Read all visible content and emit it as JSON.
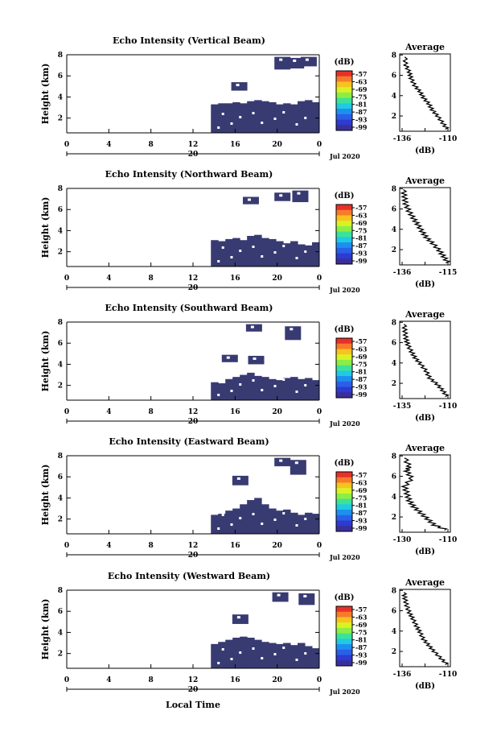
{
  "x_axis_label": "Local Time",
  "colorbar": {
    "unit": "(dB)",
    "tick_labels": [
      "-57",
      "-63",
      "-69",
      "-75",
      "-81",
      "-87",
      "-93",
      "-99"
    ],
    "colors": [
      "#e8302a",
      "#f77b2a",
      "#f8c21f",
      "#d9f225",
      "#8cee44",
      "#3ce29a",
      "#20cae2",
      "#1d8ff0",
      "#2a5fe8",
      "#2d3bd1",
      "#3a2f9a"
    ]
  },
  "palette": {
    "echo": "#383b72",
    "line": "#000000"
  },
  "chart_data": [
    {
      "type": "heatmap",
      "title": "Echo Intensity (Vertical Beam)",
      "ylabel": "Height (km)",
      "y_tick_labels": [
        "2",
        "4",
        "6",
        "8"
      ],
      "y_range": [
        0.6,
        8.0
      ],
      "x_tick_labels": [
        "0",
        "4",
        "8",
        "12",
        "16",
        "20",
        "0"
      ],
      "x_range": [
        0,
        24
      ],
      "date_labels": {
        "day": "20",
        "month_year": "Jul 2020"
      },
      "echo_cells": {
        "x_start": 13.7,
        "base": 0.6,
        "top": [
          3.3,
          3.4,
          3.4,
          3.5,
          3.4,
          3.6,
          3.7,
          3.6,
          3.5,
          3.3,
          3.4,
          3.3,
          3.6,
          3.7,
          3.5
        ],
        "patch_upper": [
          [
            16.4,
            4.6,
            5.4
          ],
          [
            20.5,
            6.6,
            7.8
          ],
          [
            21.8,
            6.7,
            7.7
          ],
          [
            23.0,
            6.9,
            7.8
          ]
        ]
      },
      "average": {
        "title": "Average",
        "xlabel": "(dB)",
        "x_tick_labels": [
          "-136",
          "-110"
        ],
        "y_tick_labels": [
          "2",
          "4",
          "6",
          "8"
        ],
        "profile_db": [
          -134.5,
          -134,
          -132,
          -131,
          -129,
          -126,
          -124,
          -121,
          -119,
          -116,
          -113,
          -110.5
        ],
        "profile_km": [
          7.8,
          7.0,
          6.3,
          5.7,
          5.0,
          4.4,
          3.8,
          3.2,
          2.6,
          2.0,
          1.3,
          0.7
        ]
      }
    },
    {
      "type": "heatmap",
      "title": "Echo Intensity (Northward Beam)",
      "ylabel": "Height (km)",
      "y_tick_labels": [
        "2",
        "4",
        "6",
        "8"
      ],
      "y_range": [
        0.6,
        8.0
      ],
      "x_tick_labels": [
        "0",
        "4",
        "8",
        "12",
        "16",
        "20",
        "0"
      ],
      "x_range": [
        0,
        24
      ],
      "date_labels": {
        "day": "20",
        "month_year": "Jul 2020"
      },
      "echo_cells": {
        "x_start": 13.7,
        "base": 0.6,
        "top": [
          3.1,
          3.0,
          3.2,
          3.3,
          3.1,
          3.5,
          3.6,
          3.3,
          3.2,
          3.0,
          2.8,
          3.0,
          2.7,
          2.6,
          2.9
        ],
        "patch_upper": [
          [
            17.5,
            6.5,
            7.2
          ],
          [
            20.5,
            6.8,
            7.6
          ],
          [
            22.2,
            6.7,
            7.8
          ]
        ]
      },
      "average": {
        "title": "Average",
        "xlabel": "(dB)",
        "x_tick_labels": [
          "-136",
          "-115"
        ],
        "y_tick_labels": [
          "2",
          "4",
          "6",
          "8"
        ],
        "profile_db": [
          -135.5,
          -135,
          -134.5,
          -133,
          -131,
          -129,
          -127,
          -125,
          -122,
          -119,
          -117,
          -115
        ],
        "profile_km": [
          7.9,
          7.2,
          6.5,
          5.8,
          5.1,
          4.5,
          3.8,
          3.2,
          2.6,
          1.9,
          1.3,
          0.7
        ]
      }
    },
    {
      "type": "heatmap",
      "title": "Echo Intensity (Southward Beam)",
      "ylabel": "Height (km)",
      "y_tick_labels": [
        "2",
        "4",
        "6",
        "8"
      ],
      "y_range": [
        0.6,
        8.0
      ],
      "x_tick_labels": [
        "0",
        "4",
        "8",
        "12",
        "16",
        "20",
        "0"
      ],
      "x_range": [
        0,
        24
      ],
      "date_labels": {
        "day": "20",
        "month_year": "Jul 2020"
      },
      "echo_cells": {
        "x_start": 13.7,
        "base": 0.6,
        "top": [
          2.3,
          2.2,
          2.6,
          2.8,
          3.0,
          3.2,
          2.9,
          2.8,
          2.6,
          2.5,
          2.7,
          2.8,
          2.6,
          2.7,
          2.5
        ],
        "patch_upper": [
          [
            17.8,
            7.1,
            7.8
          ],
          [
            15.5,
            4.2,
            4.9
          ],
          [
            18.0,
            4.0,
            4.8
          ],
          [
            21.5,
            6.3,
            7.6
          ]
        ]
      },
      "average": {
        "title": "Average",
        "xlabel": "(dB)",
        "x_tick_labels": [
          "-135",
          "-110"
        ],
        "y_tick_labels": [
          "2",
          "4",
          "6",
          "8"
        ],
        "profile_db": [
          -134,
          -133.5,
          -133,
          -132,
          -130,
          -128,
          -125,
          -122,
          -120,
          -116,
          -113,
          -110.5
        ],
        "profile_km": [
          7.8,
          7.1,
          6.4,
          5.8,
          5.1,
          4.5,
          3.9,
          3.2,
          2.5,
          1.9,
          1.3,
          0.7
        ]
      }
    },
    {
      "type": "heatmap",
      "title": "Echo Intensity (Eastward Beam)",
      "ylabel": "Height (km)",
      "y_tick_labels": [
        "2",
        "4",
        "6",
        "8"
      ],
      "y_range": [
        0.6,
        8.0
      ],
      "x_tick_labels": [
        "0",
        "4",
        "8",
        "12",
        "16",
        "20",
        "0"
      ],
      "x_range": [
        0,
        24
      ],
      "date_labels": {
        "day": "20",
        "month_year": "Jul 2020"
      },
      "echo_cells": {
        "x_start": 13.7,
        "base": 0.6,
        "top": [
          2.4,
          2.5,
          2.8,
          3.0,
          3.4,
          3.8,
          4.0,
          3.4,
          3.0,
          2.8,
          2.9,
          2.6,
          2.4,
          2.6,
          2.5
        ],
        "patch_upper": [
          [
            16.5,
            5.2,
            6.1
          ],
          [
            20.5,
            7.0,
            7.8
          ],
          [
            22.0,
            6.2,
            7.6
          ]
        ]
      },
      "average": {
        "title": "Average",
        "xlabel": "(dB)",
        "x_tick_labels": [
          "-130",
          "-110"
        ],
        "y_tick_labels": [
          "2",
          "4",
          "6",
          "8"
        ],
        "profile_db": [
          -129,
          -127,
          -128,
          -126,
          -129,
          -128,
          -127,
          -125,
          -122,
          -119,
          -116,
          -110.5
        ],
        "profile_km": [
          7.8,
          7.0,
          6.5,
          5.8,
          5.0,
          4.3,
          3.6,
          3.0,
          2.4,
          1.8,
          1.2,
          0.7
        ]
      }
    },
    {
      "type": "heatmap",
      "title": "Echo Intensity (Westward Beam)",
      "ylabel": "Height (km)",
      "y_tick_labels": [
        "2",
        "4",
        "6",
        "8"
      ],
      "y_range": [
        0.6,
        8.0
      ],
      "x_tick_labels": [
        "0",
        "4",
        "8",
        "12",
        "16",
        "20",
        "0"
      ],
      "x_range": [
        0,
        24
      ],
      "date_labels": {
        "day": "20",
        "month_year": "Jul 2020"
      },
      "echo_cells": {
        "x_start": 13.7,
        "base": 0.6,
        "top": [
          2.9,
          3.1,
          3.3,
          3.5,
          3.6,
          3.5,
          3.3,
          3.1,
          3.0,
          2.9,
          3.0,
          2.8,
          3.0,
          2.7,
          2.5
        ],
        "patch_upper": [
          [
            16.5,
            4.8,
            5.7
          ],
          [
            20.3,
            6.9,
            7.8
          ],
          [
            22.8,
            6.6,
            7.7
          ]
        ]
      },
      "average": {
        "title": "Average",
        "xlabel": "(dB)",
        "x_tick_labels": [
          "-136",
          "-110"
        ],
        "y_tick_labels": [
          "2",
          "4",
          "6",
          "8"
        ],
        "profile_db": [
          -135,
          -134.5,
          -133.5,
          -132,
          -130,
          -128,
          -126,
          -124,
          -121,
          -118,
          -114,
          -110.5
        ],
        "profile_km": [
          7.8,
          7.2,
          6.5,
          5.8,
          5.2,
          4.5,
          3.9,
          3.2,
          2.6,
          2.0,
          1.3,
          0.7
        ]
      }
    }
  ]
}
